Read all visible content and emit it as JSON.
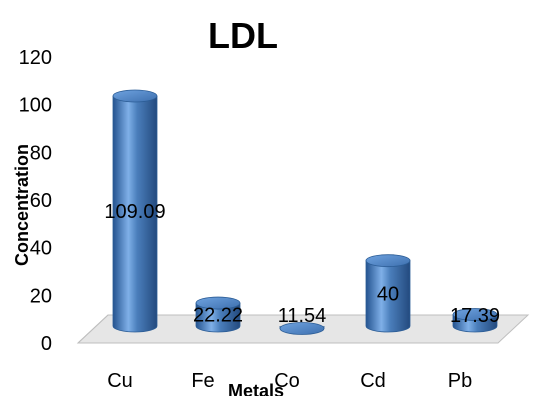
{
  "chart_data": {
    "type": "bar",
    "title": "LDL",
    "xlabel": "Metals",
    "ylabel": "Concentration",
    "categories": [
      "Cu",
      "Fe",
      "Co",
      "Cd",
      "Pb"
    ],
    "values": [
      109.09,
      22.22,
      11.54,
      40,
      17.39
    ],
    "data_labels": [
      "109.09",
      "22.22",
      "11.54",
      "40",
      "17.39"
    ],
    "ylim": [
      0,
      120
    ],
    "yticks": [
      0,
      20,
      40,
      60,
      80,
      100,
      120
    ],
    "grid": false,
    "legend": "none",
    "style": "3d-cylinder",
    "colors": {
      "bar": "#4a7ebb",
      "bar_light": "#9dc3ee",
      "bar_dark": "#24538f",
      "floor": "#d9d9d9"
    }
  }
}
